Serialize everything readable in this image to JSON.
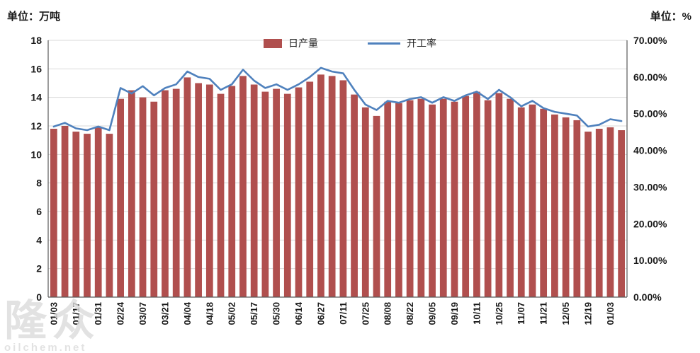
{
  "chart_data": {
    "type": "combo",
    "title": "",
    "legend_position": "top-center",
    "grid": true,
    "left_axis": {
      "unit": "单位：万吨",
      "min": 0,
      "max": 18,
      "step": 2,
      "ticks": [
        0,
        2,
        4,
        6,
        8,
        10,
        12,
        14,
        16,
        18
      ]
    },
    "right_axis": {
      "unit": "单位：%",
      "min": 0,
      "max": 70,
      "step": 10,
      "tick_labels": [
        "0.00%",
        "10.00%",
        "20.00%",
        "30.00%",
        "40.00%",
        "50.00%",
        "60.00%",
        "70.00%"
      ]
    },
    "x_tick_labels": [
      "01/03",
      "01/17",
      "01/31",
      "02/24",
      "03/07",
      "03/21",
      "04/04",
      "04/18",
      "05/02",
      "05/17",
      "05/30",
      "06/14",
      "06/27",
      "07/11",
      "07/25",
      "08/08",
      "08/22",
      "09/05",
      "09/19",
      "10/11",
      "10/25",
      "11/07",
      "11/21",
      "12/05",
      "12/19",
      "01/03"
    ],
    "label_every": 2,
    "series": [
      {
        "name": "日产量",
        "type": "bar",
        "axis": "left",
        "color": "#b04f4e",
        "values": [
          11.8,
          12.0,
          11.6,
          11.45,
          11.9,
          11.45,
          13.9,
          14.5,
          14.0,
          13.7,
          14.5,
          14.6,
          15.4,
          15.0,
          14.9,
          14.25,
          14.8,
          15.5,
          14.9,
          14.4,
          14.6,
          14.25,
          14.7,
          15.1,
          15.6,
          15.5,
          15.2,
          14.2,
          13.3,
          12.7,
          13.7,
          13.6,
          13.8,
          13.9,
          13.5,
          13.9,
          13.7,
          14.1,
          14.4,
          13.8,
          14.3,
          13.9,
          13.3,
          13.5,
          13.2,
          12.8,
          12.6,
          12.4,
          11.6,
          11.8,
          11.9,
          11.7
        ]
      },
      {
        "name": "开工率",
        "type": "line",
        "axis": "right",
        "color": "#4f81bd",
        "values": [
          46.5,
          47.5,
          46.0,
          45.5,
          46.5,
          45.5,
          57.0,
          55.5,
          57.5,
          55.0,
          57.0,
          58.0,
          61.5,
          60.0,
          59.5,
          56.5,
          58.0,
          62.0,
          59.0,
          57.0,
          58.0,
          56.5,
          58.0,
          60.0,
          62.5,
          61.5,
          61.0,
          56.5,
          52.5,
          51.0,
          53.5,
          53.0,
          54.0,
          54.5,
          53.0,
          54.5,
          53.5,
          55.0,
          56.0,
          54.0,
          56.5,
          54.5,
          52.0,
          53.5,
          51.5,
          50.5,
          50.0,
          49.5,
          46.5,
          47.0,
          48.5,
          48.0
        ]
      }
    ],
    "colors": {
      "grid": "#d9d9d9",
      "axis": "#595959",
      "text": "#1a1a1a"
    }
  },
  "watermark": {
    "text": "隆众",
    "subtext": "oilchem.net"
  }
}
